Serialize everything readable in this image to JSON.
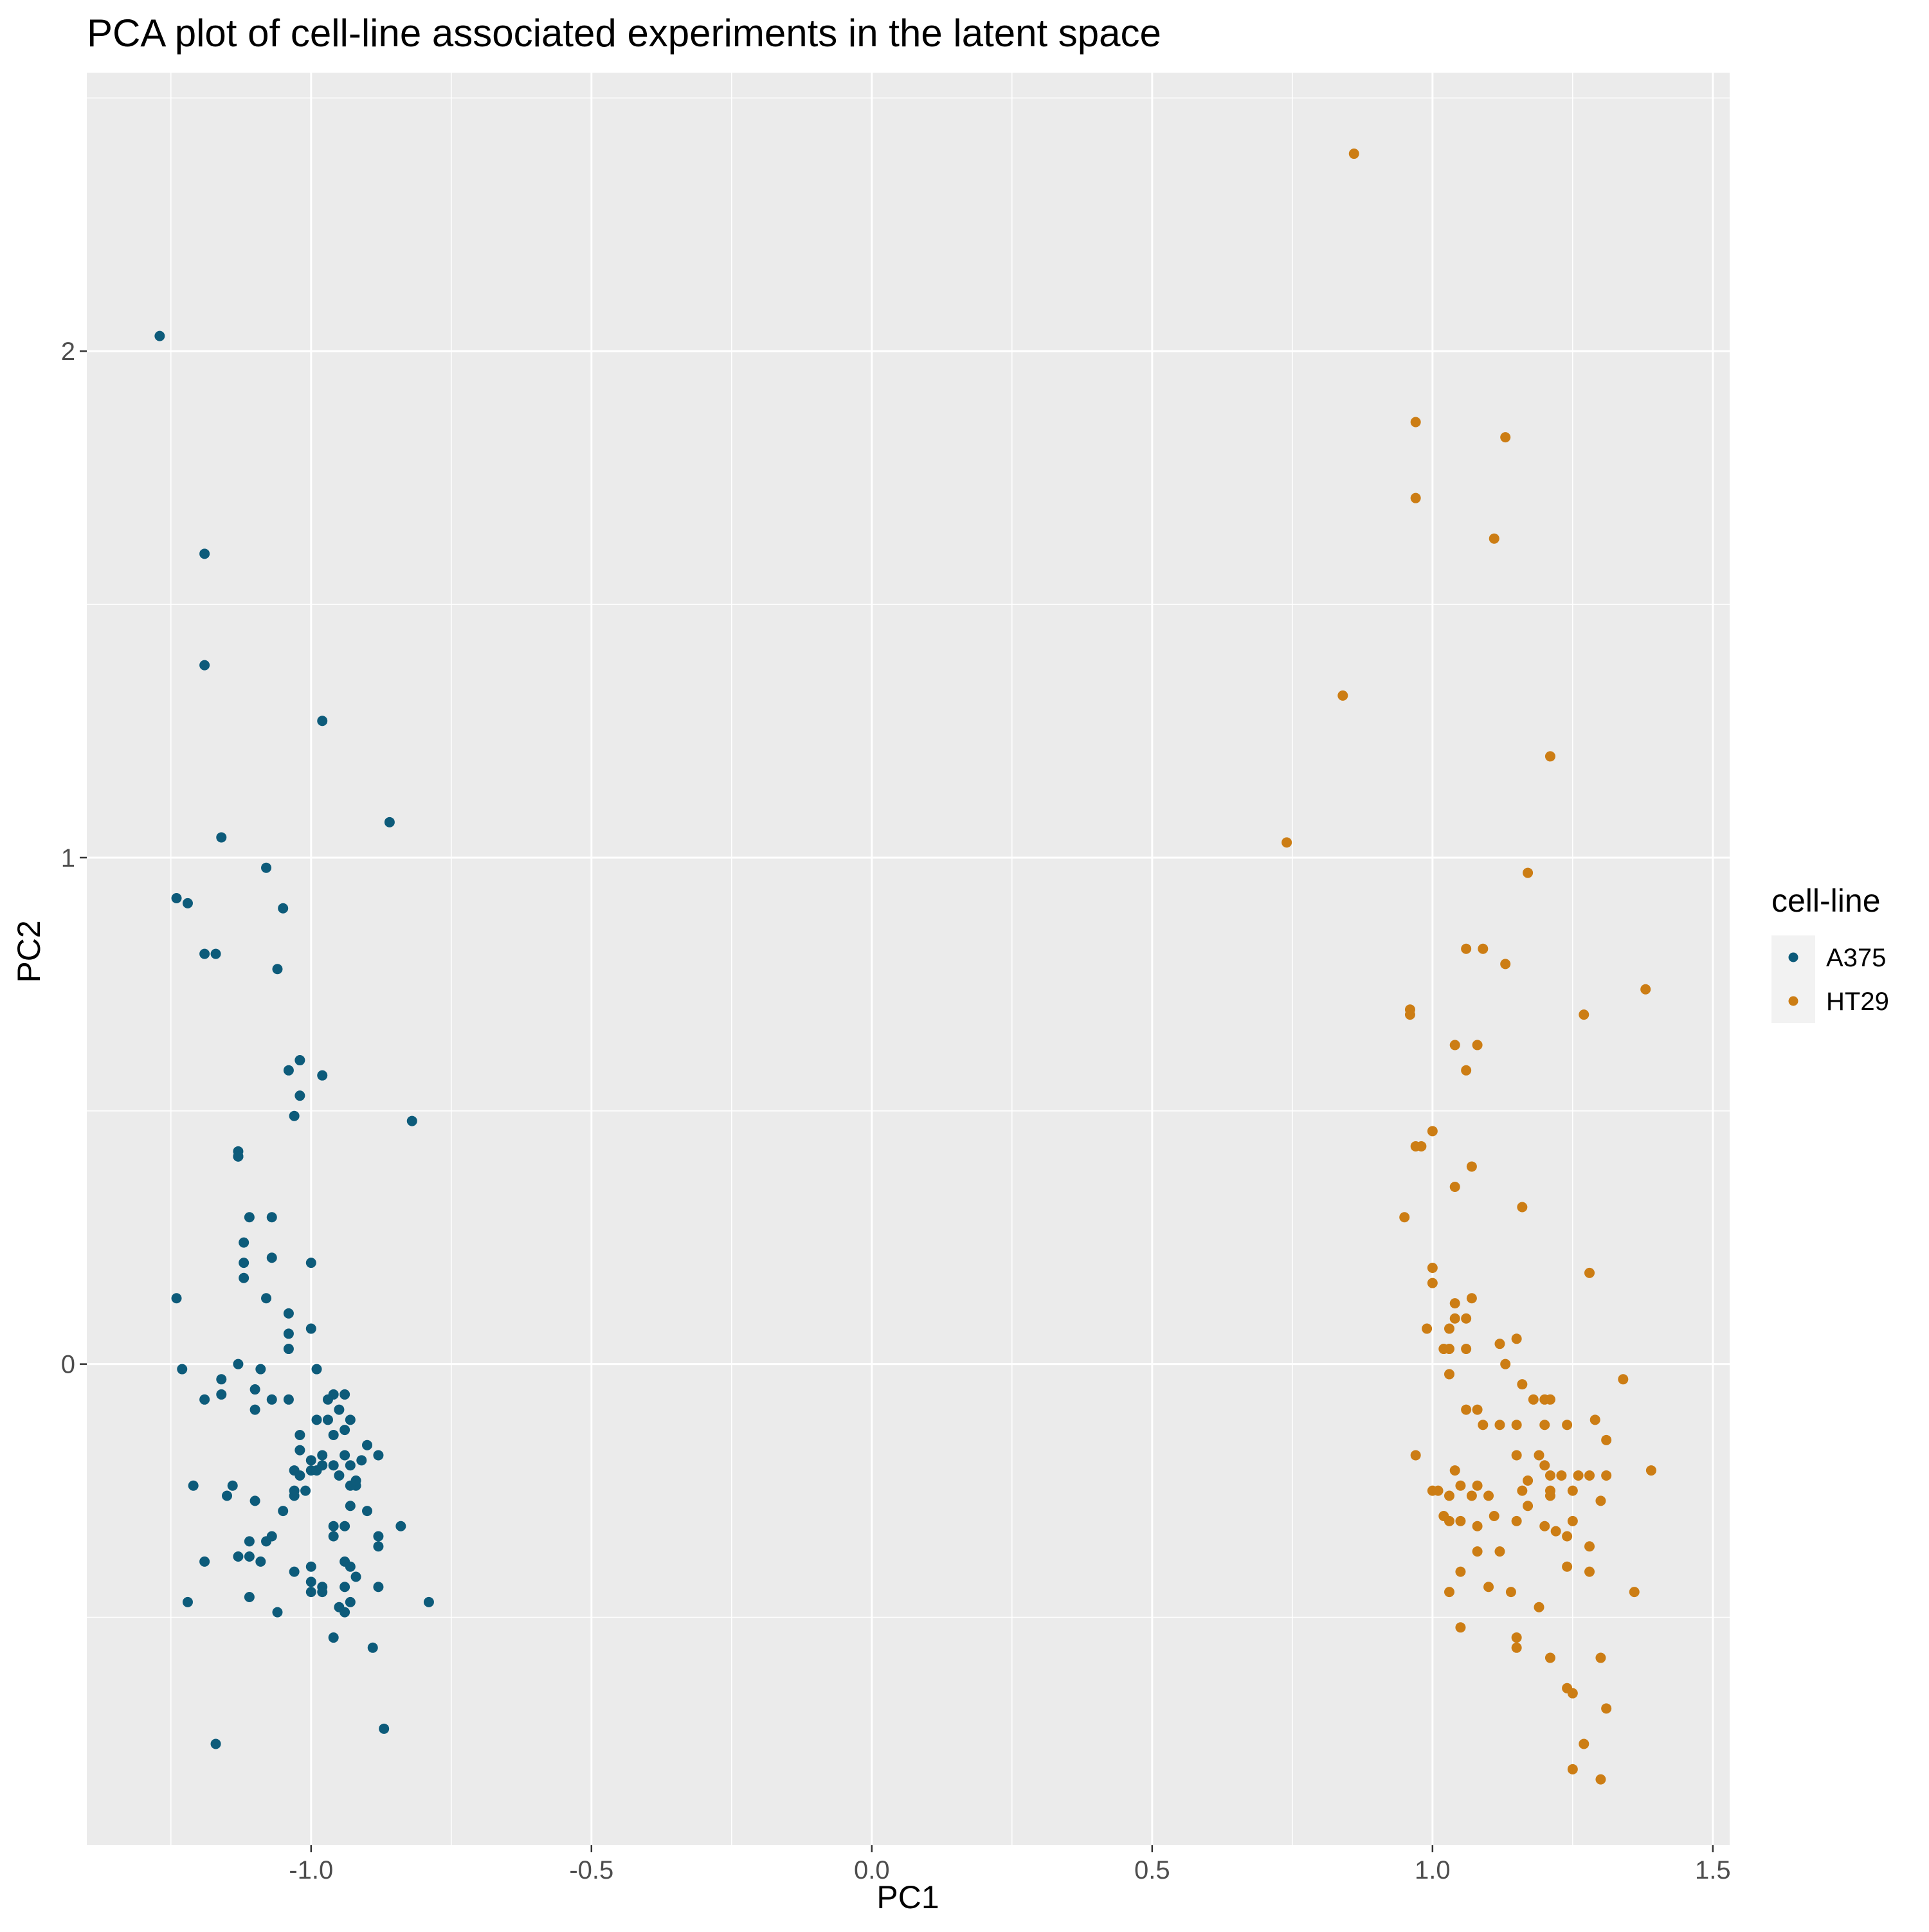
{
  "chart_data": {
    "type": "scatter",
    "title": "PCA plot of cell-line associated experiments in the latent space",
    "xlabel": "PC1",
    "ylabel": "PC2",
    "xlim": [
      -1.4,
      1.53
    ],
    "ylim": [
      -0.95,
      2.55
    ],
    "x_ticks": [
      -1.0,
      -0.5,
      0.0,
      0.5,
      1.0,
      1.5
    ],
    "x_tick_labels": [
      "-1.0",
      "-0.5",
      "0.0",
      "0.5",
      "1.0",
      "1.5"
    ],
    "y_ticks": [
      0,
      1,
      2
    ],
    "y_tick_labels": [
      "0",
      "1",
      "2"
    ],
    "grid": true,
    "background": "#ebebeb",
    "legend": {
      "title": "cell-line",
      "placement": "right",
      "entries": [
        "A375",
        "HT29"
      ]
    },
    "series": [
      {
        "name": "A375",
        "color": "#0d5b7a",
        "points": [
          [
            -1.27,
            2.03
          ],
          [
            -1.19,
            1.6
          ],
          [
            -1.19,
            1.38
          ],
          [
            -0.98,
            1.27
          ],
          [
            -0.86,
            1.07
          ],
          [
            -1.16,
            1.04
          ],
          [
            -1.08,
            0.98
          ],
          [
            -1.24,
            0.92
          ],
          [
            -1.22,
            0.91
          ],
          [
            -1.05,
            0.9
          ],
          [
            -1.19,
            0.81
          ],
          [
            -1.17,
            0.81
          ],
          [
            -1.06,
            0.78
          ],
          [
            -1.02,
            0.6
          ],
          [
            -1.04,
            0.58
          ],
          [
            -0.98,
            0.57
          ],
          [
            -1.02,
            0.53
          ],
          [
            -1.03,
            0.49
          ],
          [
            -0.82,
            0.48
          ],
          [
            -1.13,
            0.41
          ],
          [
            -1.13,
            0.42
          ],
          [
            -1.13,
            0.41
          ],
          [
            -1.11,
            0.29
          ],
          [
            -1.07,
            0.29
          ],
          [
            -1.12,
            0.24
          ],
          [
            -1.12,
            0.2
          ],
          [
            -1.07,
            0.21
          ],
          [
            -1.0,
            0.2
          ],
          [
            -1.12,
            0.17
          ],
          [
            -1.08,
            0.13
          ],
          [
            -1.24,
            0.13
          ],
          [
            -1.04,
            0.1
          ],
          [
            -1.0,
            0.07
          ],
          [
            -1.04,
            0.06
          ],
          [
            -1.04,
            0.03
          ],
          [
            -1.13,
            0.0
          ],
          [
            -1.23,
            -0.01
          ],
          [
            -1.09,
            -0.01
          ],
          [
            -1.16,
            -0.03
          ],
          [
            -0.99,
            -0.01
          ],
          [
            -1.19,
            -0.07
          ],
          [
            -1.1,
            -0.05
          ],
          [
            -1.07,
            -0.07
          ],
          [
            -1.04,
            -0.07
          ],
          [
            -0.96,
            -0.06
          ],
          [
            -0.94,
            -0.06
          ],
          [
            -1.16,
            -0.06
          ],
          [
            -0.97,
            -0.07
          ],
          [
            -1.1,
            -0.09
          ],
          [
            -0.95,
            -0.09
          ],
          [
            -0.99,
            -0.11
          ],
          [
            -0.97,
            -0.11
          ],
          [
            -0.93,
            -0.11
          ],
          [
            -1.02,
            -0.14
          ],
          [
            -0.96,
            -0.14
          ],
          [
            -0.94,
            -0.13
          ],
          [
            -0.9,
            -0.16
          ],
          [
            -1.02,
            -0.17
          ],
          [
            -1.0,
            -0.19
          ],
          [
            -0.98,
            -0.18
          ],
          [
            -0.94,
            -0.18
          ],
          [
            -0.88,
            -0.18
          ],
          [
            -0.91,
            -0.19
          ],
          [
            -1.03,
            -0.21
          ],
          [
            -1.0,
            -0.21
          ],
          [
            -0.98,
            -0.2
          ],
          [
            -0.96,
            -0.2
          ],
          [
            -0.93,
            -0.2
          ],
          [
            -1.02,
            -0.22
          ],
          [
            -0.99,
            -0.21
          ],
          [
            -0.95,
            -0.22
          ],
          [
            -0.92,
            -0.23
          ],
          [
            -0.92,
            -0.24
          ],
          [
            -1.21,
            -0.24
          ],
          [
            -1.14,
            -0.24
          ],
          [
            -0.93,
            -0.24
          ],
          [
            -1.03,
            -0.25
          ],
          [
            -1.01,
            -0.25
          ],
          [
            -1.15,
            -0.26
          ],
          [
            -1.03,
            -0.26
          ],
          [
            -1.1,
            -0.27
          ],
          [
            -0.93,
            -0.28
          ],
          [
            -0.9,
            -0.29
          ],
          [
            -1.05,
            -0.29
          ],
          [
            -0.96,
            -0.32
          ],
          [
            -0.94,
            -0.32
          ],
          [
            -0.84,
            -0.32
          ],
          [
            -1.07,
            -0.34
          ],
          [
            -1.08,
            -0.35
          ],
          [
            -1.11,
            -0.35
          ],
          [
            -0.96,
            -0.34
          ],
          [
            -0.88,
            -0.34
          ],
          [
            -0.88,
            -0.36
          ],
          [
            -1.11,
            -0.38
          ],
          [
            -1.13,
            -0.38
          ],
          [
            -1.09,
            -0.39
          ],
          [
            -1.19,
            -0.39
          ],
          [
            -1.0,
            -0.4
          ],
          [
            -0.94,
            -0.39
          ],
          [
            -0.93,
            -0.4
          ],
          [
            -1.03,
            -0.41
          ],
          [
            -0.92,
            -0.42
          ],
          [
            -0.98,
            -0.44
          ],
          [
            -1.0,
            -0.43
          ],
          [
            -0.88,
            -0.44
          ],
          [
            -0.94,
            -0.44
          ],
          [
            -1.0,
            -0.45
          ],
          [
            -0.98,
            -0.45
          ],
          [
            -0.93,
            -0.47
          ],
          [
            -1.22,
            -0.47
          ],
          [
            -1.11,
            -0.46
          ],
          [
            -0.79,
            -0.47
          ],
          [
            -0.95,
            -0.48
          ],
          [
            -1.06,
            -0.49
          ],
          [
            -0.94,
            -0.49
          ],
          [
            -0.96,
            -0.54
          ],
          [
            -0.89,
            -0.56
          ],
          [
            -0.87,
            -0.72
          ],
          [
            -1.17,
            -0.75
          ]
        ]
      },
      {
        "name": "HT29",
        "color": "#cc7d14",
        "points": [
          [
            0.86,
            2.39
          ],
          [
            0.97,
            1.86
          ],
          [
            1.13,
            1.83
          ],
          [
            0.97,
            1.71
          ],
          [
            1.11,
            1.63
          ],
          [
            0.84,
            1.32
          ],
          [
            1.21,
            1.2
          ],
          [
            0.74,
            1.03
          ],
          [
            1.17,
            0.97
          ],
          [
            1.06,
            0.82
          ],
          [
            1.09,
            0.82
          ],
          [
            1.13,
            0.79
          ],
          [
            1.38,
            0.74
          ],
          [
            0.96,
            0.7
          ],
          [
            0.96,
            0.69
          ],
          [
            1.27,
            0.69
          ],
          [
            1.04,
            0.63
          ],
          [
            1.08,
            0.63
          ],
          [
            1.06,
            0.58
          ],
          [
            1.0,
            0.46
          ],
          [
            0.97,
            0.43
          ],
          [
            0.98,
            0.43
          ],
          [
            1.07,
            0.39
          ],
          [
            1.04,
            0.35
          ],
          [
            1.16,
            0.31
          ],
          [
            0.95,
            0.29
          ],
          [
            1.0,
            0.19
          ],
          [
            1.28,
            0.18
          ],
          [
            1.0,
            0.16
          ],
          [
            1.04,
            0.12
          ],
          [
            1.07,
            0.13
          ],
          [
            1.04,
            0.09
          ],
          [
            1.06,
            0.09
          ],
          [
            1.03,
            0.07
          ],
          [
            0.99,
            0.07
          ],
          [
            1.15,
            0.05
          ],
          [
            1.02,
            0.03
          ],
          [
            1.03,
            0.03
          ],
          [
            1.06,
            0.03
          ],
          [
            1.12,
            0.04
          ],
          [
            1.13,
            0.0
          ],
          [
            1.03,
            -0.02
          ],
          [
            1.16,
            -0.04
          ],
          [
            1.34,
            -0.03
          ],
          [
            1.18,
            -0.07
          ],
          [
            1.2,
            -0.07
          ],
          [
            1.21,
            -0.07
          ],
          [
            1.29,
            -0.11
          ],
          [
            1.08,
            -0.09
          ],
          [
            1.06,
            -0.09
          ],
          [
            1.09,
            -0.12
          ],
          [
            1.12,
            -0.12
          ],
          [
            1.15,
            -0.12
          ],
          [
            1.2,
            -0.12
          ],
          [
            1.24,
            -0.12
          ],
          [
            1.31,
            -0.15
          ],
          [
            0.97,
            -0.18
          ],
          [
            1.15,
            -0.18
          ],
          [
            1.19,
            -0.18
          ],
          [
            1.2,
            -0.2
          ],
          [
            1.39,
            -0.21
          ],
          [
            1.04,
            -0.21
          ],
          [
            1.21,
            -0.22
          ],
          [
            1.23,
            -0.22
          ],
          [
            1.26,
            -0.22
          ],
          [
            1.28,
            -0.22
          ],
          [
            1.31,
            -0.22
          ],
          [
            1.05,
            -0.24
          ],
          [
            1.08,
            -0.24
          ],
          [
            1.17,
            -0.23
          ],
          [
            1.16,
            -0.25
          ],
          [
            1.21,
            -0.25
          ],
          [
            1.0,
            -0.25
          ],
          [
            1.01,
            -0.25
          ],
          [
            1.03,
            -0.26
          ],
          [
            1.07,
            -0.26
          ],
          [
            1.1,
            -0.26
          ],
          [
            1.21,
            -0.26
          ],
          [
            1.25,
            -0.25
          ],
          [
            1.3,
            -0.27
          ],
          [
            1.17,
            -0.28
          ],
          [
            1.02,
            -0.3
          ],
          [
            1.03,
            -0.31
          ],
          [
            1.05,
            -0.31
          ],
          [
            1.08,
            -0.32
          ],
          [
            1.15,
            -0.31
          ],
          [
            1.11,
            -0.3
          ],
          [
            1.25,
            -0.31
          ],
          [
            1.2,
            -0.32
          ],
          [
            1.22,
            -0.33
          ],
          [
            1.24,
            -0.34
          ],
          [
            1.28,
            -0.36
          ],
          [
            1.08,
            -0.37
          ],
          [
            1.12,
            -0.37
          ],
          [
            1.05,
            -0.41
          ],
          [
            1.24,
            -0.4
          ],
          [
            1.28,
            -0.41
          ],
          [
            1.36,
            -0.45
          ],
          [
            1.03,
            -0.45
          ],
          [
            1.1,
            -0.44
          ],
          [
            1.14,
            -0.45
          ],
          [
            1.19,
            -0.48
          ],
          [
            1.05,
            -0.52
          ],
          [
            1.15,
            -0.54
          ],
          [
            1.15,
            -0.56
          ],
          [
            1.21,
            -0.58
          ],
          [
            1.3,
            -0.58
          ],
          [
            1.24,
            -0.64
          ],
          [
            1.25,
            -0.65
          ],
          [
            1.31,
            -0.68
          ],
          [
            1.27,
            -0.75
          ],
          [
            1.25,
            -0.8
          ],
          [
            1.3,
            -0.82
          ]
        ]
      }
    ]
  }
}
